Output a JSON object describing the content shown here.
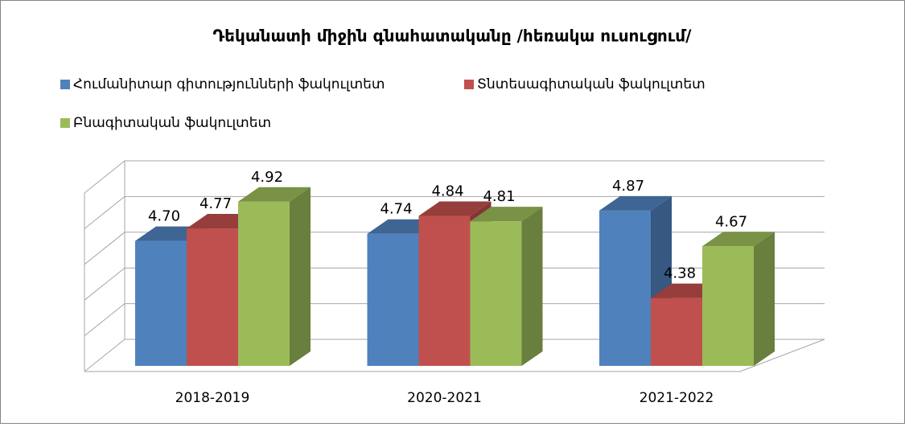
{
  "chart_data": {
    "type": "bar3d",
    "title": "Դեկանատի միջին գնահատականը /հեռակա ուսուցում/",
    "categories": [
      "2018-2019",
      "2020-2021",
      "2021-2022"
    ],
    "series": [
      {
        "name": "Հումանիտար գիտությունների ֆակուլտետ",
        "color": "#4f81bd",
        "values": [
          4.7,
          4.74,
          4.87
        ],
        "value_labels": [
          "4.70",
          "4.74",
          "4.87"
        ]
      },
      {
        "name": "Տնտեսագիտական ֆակուլտետ",
        "color": "#c0504d",
        "values": [
          4.77,
          4.84,
          4.38
        ],
        "value_labels": [
          "4.77",
          "4.84",
          "4.38"
        ]
      },
      {
        "name": "Բնագիտական ֆակուլտետ",
        "color": "#9bbb59",
        "values": [
          4.92,
          4.81,
          4.67
        ],
        "value_labels": [
          "4.92",
          "4.81",
          "4.67"
        ]
      }
    ],
    "ylim": [
      4,
      5
    ],
    "yticks": [
      4,
      4.2,
      4.4,
      4.6,
      4.8,
      5
    ],
    "grid": true
  }
}
